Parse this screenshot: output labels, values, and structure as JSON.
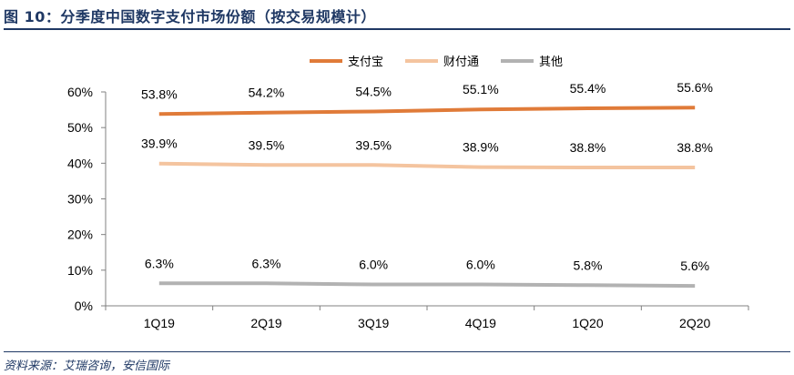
{
  "figure": {
    "title": "图 10：分季度中国数字支付市场份额（按交易规模计）",
    "source": "资料来源：艾瑞咨询，安信国际"
  },
  "chart_data": {
    "type": "line",
    "categories": [
      "1Q19",
      "2Q19",
      "3Q19",
      "4Q19",
      "1Q20",
      "2Q20"
    ],
    "series": [
      {
        "name": "支付宝",
        "values": [
          53.8,
          54.2,
          54.5,
          55.1,
          55.4,
          55.6
        ],
        "labels": [
          "53.8%",
          "54.2%",
          "54.5%",
          "55.1%",
          "55.4%",
          "55.6%"
        ],
        "color": "#e07b39"
      },
      {
        "name": "财付通",
        "values": [
          39.9,
          39.5,
          39.5,
          38.9,
          38.8,
          38.8
        ],
        "labels": [
          "39.9%",
          "39.5%",
          "39.5%",
          "38.9%",
          "38.8%",
          "38.8%"
        ],
        "color": "#f4c49f"
      },
      {
        "name": "其他",
        "values": [
          6.3,
          6.3,
          6.0,
          6.0,
          5.8,
          5.6
        ],
        "labels": [
          "6.3%",
          "6.3%",
          "6.0%",
          "6.0%",
          "5.8%",
          "5.6%"
        ],
        "color": "#b2b2b2"
      }
    ],
    "ylim": [
      0,
      60
    ],
    "yticks": [
      "0%",
      "10%",
      "20%",
      "30%",
      "40%",
      "50%",
      "60%"
    ],
    "grid": false,
    "legend": "top-center",
    "xlabel": "",
    "ylabel": ""
  }
}
